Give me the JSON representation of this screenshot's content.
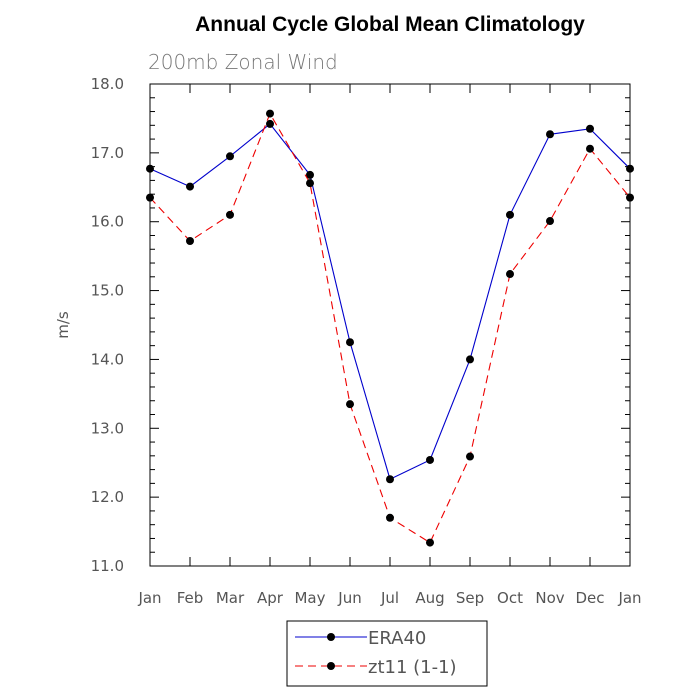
{
  "chart_data": {
    "type": "line",
    "title": "Annual Cycle Global Mean Climatology",
    "subtitle": "200mb Zonal Wind",
    "ylabel": "m/s",
    "xlabel": "",
    "categories": [
      "Jan",
      "Feb",
      "Mar",
      "Apr",
      "May",
      "Jun",
      "Jul",
      "Aug",
      "Sep",
      "Oct",
      "Nov",
      "Dec",
      "Jan"
    ],
    "ylim": [
      11.0,
      18.0
    ],
    "y_ticks": [
      11.0,
      12.0,
      13.0,
      14.0,
      15.0,
      16.0,
      17.0,
      18.0
    ],
    "y_tick_labels": [
      "11.0",
      "12.0",
      "13.0",
      "14.0",
      "15.0",
      "16.0",
      "17.0",
      "18.0"
    ],
    "y_minor_step": 0.2,
    "grid": false,
    "legend_position": "bottom-center",
    "series": [
      {
        "name": "ERA40",
        "color": "#0000cc",
        "dash": "solid",
        "values": [
          16.77,
          16.51,
          16.95,
          17.42,
          16.68,
          14.25,
          12.26,
          12.54,
          14.0,
          16.1,
          17.27,
          17.35,
          16.77
        ]
      },
      {
        "name": "zt11 (1-1)",
        "color": "#ee0000",
        "dash": "dashed",
        "values": [
          16.35,
          15.72,
          16.1,
          17.57,
          16.56,
          13.35,
          11.7,
          11.34,
          12.59,
          15.24,
          16.01,
          17.06,
          16.35
        ]
      }
    ]
  }
}
